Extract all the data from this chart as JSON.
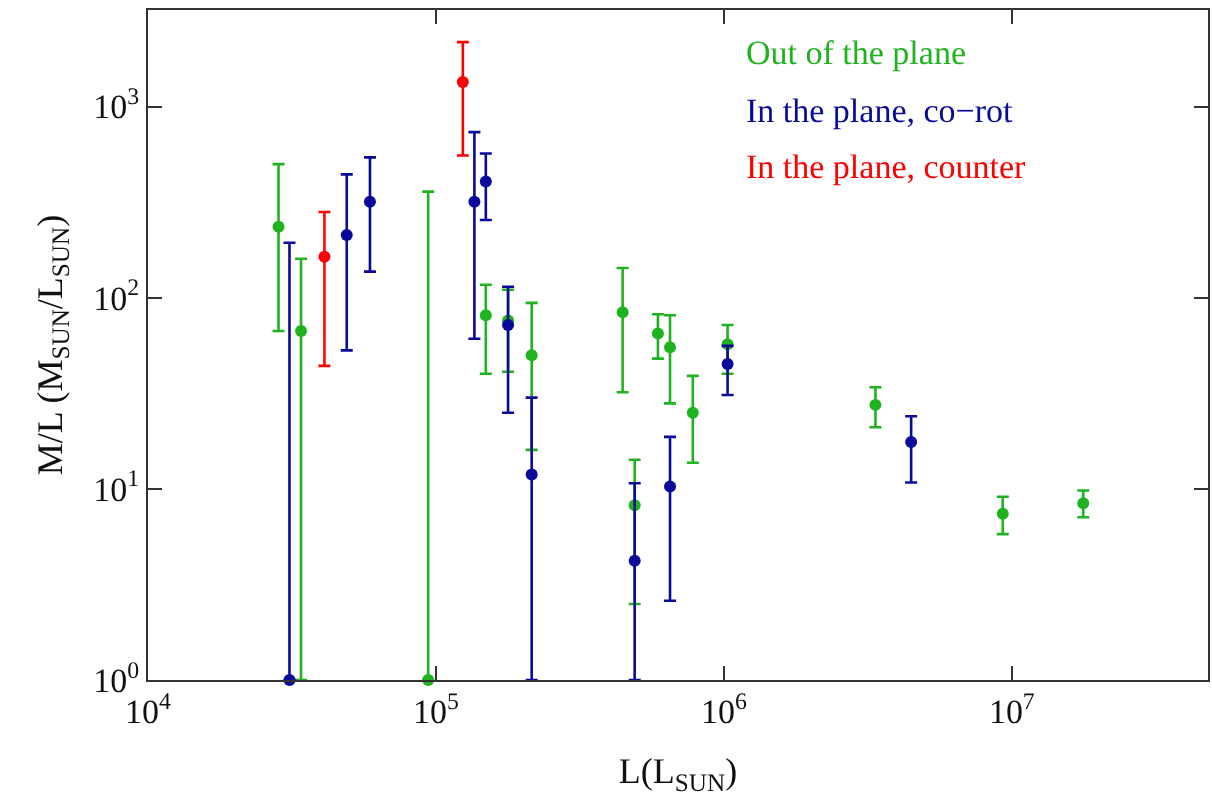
{
  "chart_data": {
    "type": "scatter",
    "xlabel": "L(L$_{SUN}$)",
    "ylabel": "M/L (M$_{SUN}$/L$_{SUN}$)",
    "log": "xy",
    "grid": false,
    "marker": "circle",
    "legend": "top right",
    "xlim": [
      10000,
      48000000
    ],
    "ylim": [
      1,
      3200
    ],
    "xticks": [
      {
        "value": 10000,
        "label": "10$^{4}$"
      },
      {
        "value": 100000,
        "label": "10$^{5}$"
      },
      {
        "value": 1000000,
        "label": "10$^{6}$"
      },
      {
        "value": 10000000,
        "label": "10$^{7}$"
      }
    ],
    "yticks": [
      {
        "value": 1,
        "label": "10$^{0}$"
      },
      {
        "value": 10,
        "label": "10$^{1}$"
      },
      {
        "value": 100,
        "label": "10$^{2}$"
      },
      {
        "value": 1000,
        "label": "10$^{3}$"
      }
    ],
    "series": [
      {
        "name": "Out of the plane",
        "color": "#1fb31f",
        "x": [
          28400,
          34000,
          94000,
          149000,
          178000,
          215000,
          445000,
          490000,
          590000,
          650000,
          780000,
          1030000,
          3360000,
          9300000,
          17700000
        ],
        "values": [
          235,
          67,
          1,
          81,
          76,
          50,
          84,
          8.2,
          65,
          55,
          25,
          57,
          27.5,
          7.4,
          8.4
        ],
        "errors": [
          [
            67,
            500
          ],
          [
            1,
            160
          ],
          [
            1,
            359
          ],
          [
            40,
            117
          ],
          [
            41,
            110
          ],
          [
            16,
            94
          ],
          [
            32,
            143
          ],
          [
            2.5,
            14.2
          ],
          [
            48,
            82
          ],
          [
            28,
            81
          ],
          [
            13.7,
            39
          ],
          [
            40,
            72
          ],
          [
            21,
            34
          ],
          [
            5.8,
            9.1
          ],
          [
            7.1,
            9.8
          ]
        ]
      },
      {
        "name": "In the plane, co−rot",
        "color": "#0a0a9a",
        "x": [
          31000,
          49000,
          59000,
          136000,
          149000,
          178000,
          215000,
          490000,
          650000,
          1030000,
          4470000
        ],
        "values": [
          1,
          213,
          318,
          318,
          405,
          72,
          11.9,
          4.2,
          10.3,
          45,
          17.6
        ],
        "errors": [
          [
            1,
            194
          ],
          [
            53,
            442
          ],
          [
            137,
            542
          ],
          [
            61,
            735
          ],
          [
            255,
            568
          ],
          [
            25,
            114
          ],
          [
            1,
            30
          ],
          [
            1,
            10.7
          ],
          [
            2.6,
            18.7
          ],
          [
            31,
            56
          ],
          [
            10.8,
            24
          ]
        ]
      },
      {
        "name": "In the plane, counter",
        "color": "#ff0000",
        "x": [
          41000,
          124000
        ],
        "values": [
          164,
          1346
        ],
        "errors": [
          [
            44,
            281
          ],
          [
            555,
            2173
          ]
        ]
      }
    ]
  }
}
